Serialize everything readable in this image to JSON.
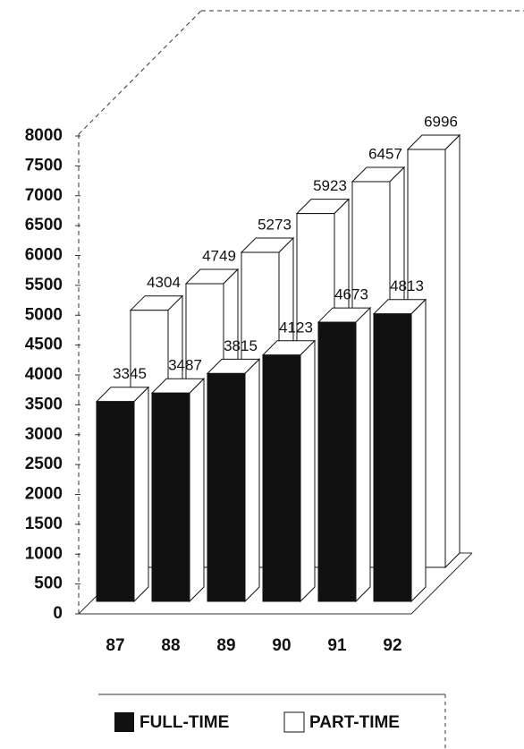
{
  "chart_data": {
    "type": "bar3d",
    "categories": [
      "87",
      "88",
      "89",
      "90",
      "91",
      "92"
    ],
    "series": [
      {
        "name": "FULL-TIME",
        "color": "#111111",
        "values": [
          3345,
          3487,
          3815,
          4123,
          4673,
          4813
        ]
      },
      {
        "name": "PART-TIME",
        "color": "#ffffff",
        "values": [
          4304,
          4749,
          5273,
          5923,
          6457,
          6996
        ]
      }
    ],
    "ylim": [
      0,
      8000
    ],
    "yticks": [
      0,
      500,
      1000,
      1500,
      2000,
      2500,
      3000,
      3500,
      4000,
      4500,
      5000,
      5500,
      6000,
      6500,
      7000,
      7500,
      8000
    ]
  }
}
